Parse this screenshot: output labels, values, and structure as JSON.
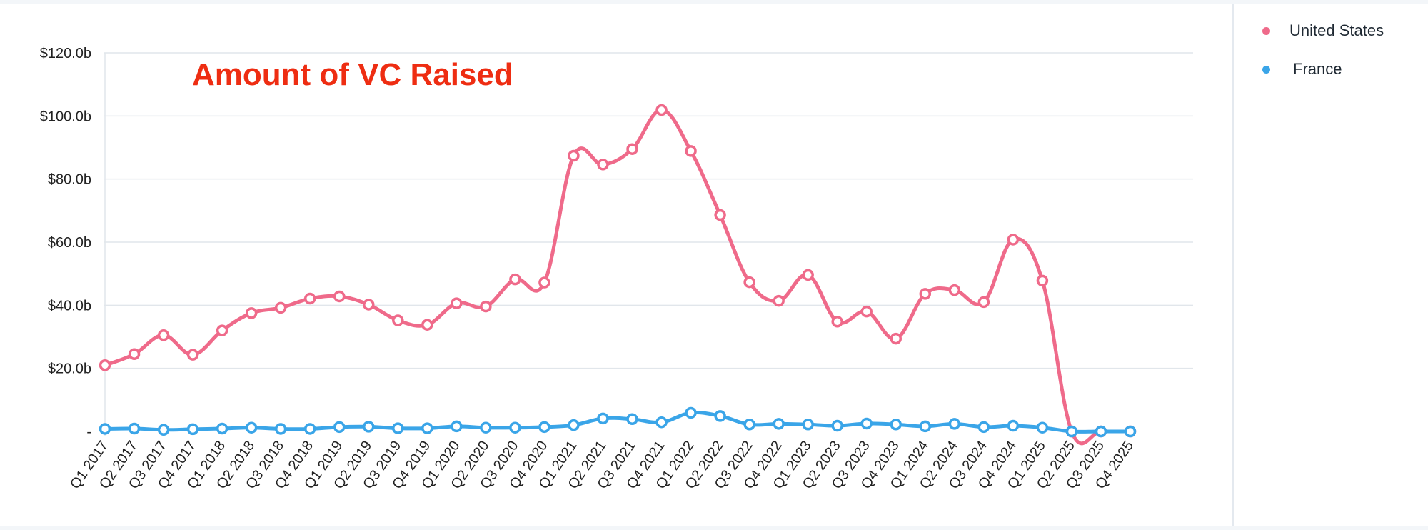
{
  "chart_data": {
    "type": "line",
    "title": "Amount of VC Raised",
    "title_color": "#ee2d12",
    "legend_position": "right",
    "grid": true,
    "smooth": true,
    "ylim": [
      0,
      120
    ],
    "y_ticks": [
      {
        "value": 0,
        "label": "-"
      },
      {
        "value": 20,
        "label": "$20.0b"
      },
      {
        "value": 40,
        "label": "$40.0b"
      },
      {
        "value": 60,
        "label": "$60.0b"
      },
      {
        "value": 80,
        "label": "$80.0b"
      },
      {
        "value": 100,
        "label": "$100.0b"
      },
      {
        "value": 120,
        "label": "$120.0b"
      }
    ],
    "categories": [
      "Q1 2017",
      "Q2 2017",
      "Q3 2017",
      "Q4 2017",
      "Q1 2018",
      "Q2 2018",
      "Q3 2018",
      "Q4 2018",
      "Q1 2019",
      "Q2 2019",
      "Q3 2019",
      "Q4 2019",
      "Q1 2020",
      "Q2 2020",
      "Q3 2020",
      "Q4 2020",
      "Q1 2021",
      "Q2 2021",
      "Q3 2021",
      "Q4 2021",
      "Q1 2022",
      "Q2 2022",
      "Q3 2022",
      "Q4 2022",
      "Q1 2023",
      "Q2 2023",
      "Q3 2023",
      "Q4 2023",
      "Q1 2024",
      "Q2 2024",
      "Q3 2024",
      "Q4 2024",
      "Q1 2025",
      "Q2 2025",
      "Q3 2025",
      "Q4 2025"
    ],
    "series": [
      {
        "name": "United States",
        "color": "#ef6a8a",
        "values": [
          21.0,
          24.5,
          30.5,
          24.3,
          32.0,
          37.5,
          39.2,
          42.1,
          42.8,
          40.2,
          35.2,
          33.8,
          40.6,
          39.6,
          48.2,
          47.2,
          87.4,
          84.6,
          89.5,
          101.9,
          88.9,
          68.6,
          47.3,
          41.4,
          49.6,
          34.8,
          38.0,
          29.4,
          43.6,
          44.8,
          41.0,
          60.8,
          47.8,
          0.0,
          0.0,
          0.0
        ]
      },
      {
        "name": "France",
        "color": "#3aa5e8",
        "values": [
          0.8,
          0.9,
          0.5,
          0.7,
          0.9,
          1.2,
          0.8,
          0.8,
          1.4,
          1.5,
          1.0,
          1.0,
          1.6,
          1.2,
          1.2,
          1.4,
          2.0,
          4.1,
          3.9,
          2.9,
          5.9,
          4.9,
          2.2,
          2.4,
          2.2,
          1.8,
          2.5,
          2.2,
          1.6,
          2.4,
          1.4,
          1.8,
          1.2,
          0.0,
          0.0,
          0.0
        ]
      }
    ]
  }
}
